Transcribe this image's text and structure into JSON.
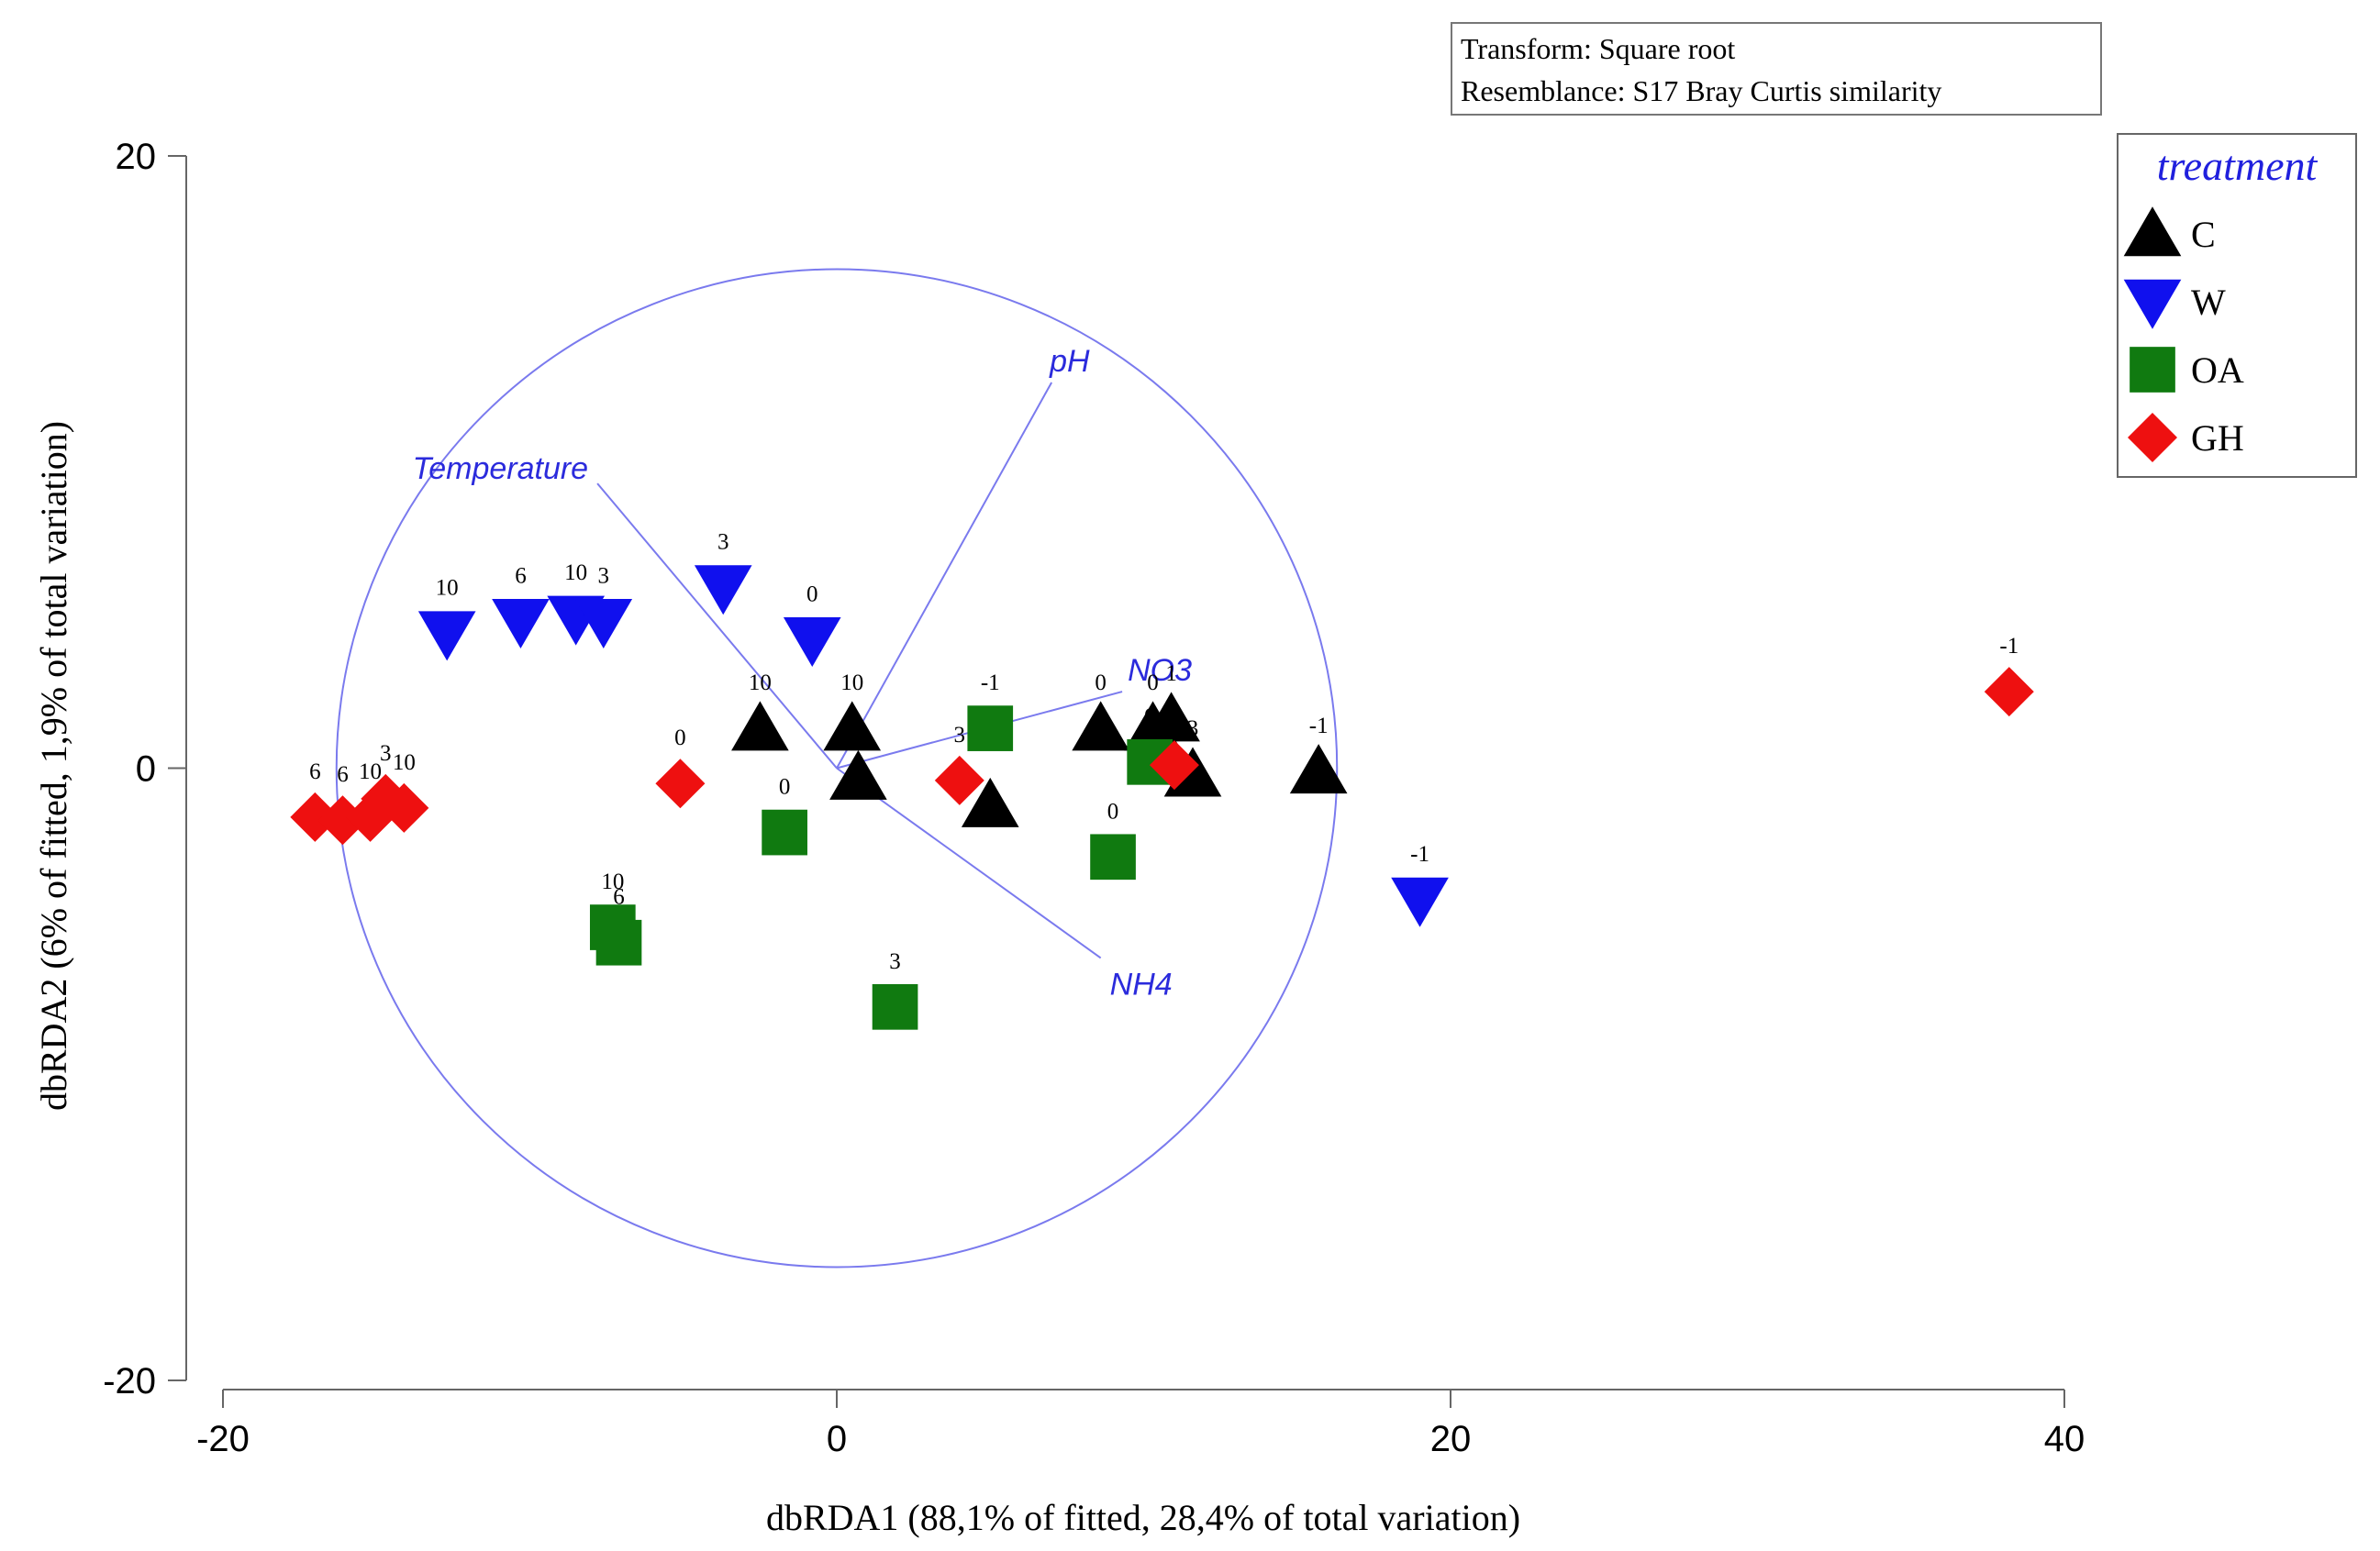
{
  "chart_data": {
    "type": "scatter",
    "title": "",
    "xlabel": "dbRDA1 (88,1% of fitted, 28,4% of total variation)",
    "ylabel": "dbRDA2 (6% of fitted, 1,9% of total variation)",
    "xlim": [
      -20,
      40
    ],
    "ylim": [
      -20,
      20
    ],
    "x_ticks": [
      -20,
      0,
      20,
      40
    ],
    "y_ticks": [
      -20,
      0,
      20
    ],
    "x_tick_labels": [
      "-20",
      "0",
      "20",
      "40"
    ],
    "y_tick_labels": [
      "-20",
      "0",
      "20"
    ],
    "info_box": [
      "Transform: Square root",
      "Resemblance: S17 Bray Curtis similarity"
    ],
    "legend_title": "treatment",
    "circle": {
      "center": [
        0,
        0
      ],
      "radius": 16.3
    },
    "vectors": [
      {
        "name": "pH",
        "end": [
          7.0,
          12.6
        ]
      },
      {
        "name": "Temperature",
        "end": [
          -7.8,
          9.3
        ]
      },
      {
        "name": "NO3",
        "end": [
          9.3,
          2.5
        ]
      },
      {
        "name": "NH4",
        "end": [
          8.6,
          -6.2
        ]
      }
    ],
    "series": [
      {
        "name": "C",
        "marker": "triangle-up",
        "color": "#000000",
        "points": [
          {
            "x": -2.5,
            "y": 1.3,
            "label": "10"
          },
          {
            "x": 0.5,
            "y": 1.3,
            "label": "10"
          },
          {
            "x": 0.7,
            "y": -0.3,
            "label": ""
          },
          {
            "x": 5.0,
            "y": -1.2,
            "label": ""
          },
          {
            "x": 8.6,
            "y": 1.3,
            "label": "0"
          },
          {
            "x": 10.3,
            "y": 1.3,
            "label": "0"
          },
          {
            "x": 10.9,
            "y": 1.6,
            "label": "1"
          },
          {
            "x": 11.6,
            "y": -0.2,
            "label": "3"
          },
          {
            "x": 15.7,
            "y": -0.1,
            "label": "-1"
          }
        ]
      },
      {
        "name": "W",
        "marker": "triangle-down",
        "color": "#1010ee",
        "points": [
          {
            "x": -12.7,
            "y": 4.4,
            "label": "10"
          },
          {
            "x": -10.3,
            "y": 4.8,
            "label": "6"
          },
          {
            "x": -8.5,
            "y": 4.9,
            "label": "10"
          },
          {
            "x": -7.6,
            "y": 4.8,
            "label": "3"
          },
          {
            "x": -3.7,
            "y": 5.9,
            "label": "3"
          },
          {
            "x": -0.8,
            "y": 4.2,
            "label": "0"
          },
          {
            "x": 19.0,
            "y": -4.3,
            "label": "-1"
          }
        ]
      },
      {
        "name": "OA",
        "marker": "square",
        "color": "#107a10",
        "points": [
          {
            "x": 5.0,
            "y": 1.3,
            "label": "-1"
          },
          {
            "x": 10.2,
            "y": 0.2,
            "label": "0"
          },
          {
            "x": -1.7,
            "y": -2.1,
            "label": "0"
          },
          {
            "x": 9.0,
            "y": -2.9,
            "label": "0"
          },
          {
            "x": -7.3,
            "y": -5.2,
            "label": "10"
          },
          {
            "x": -7.1,
            "y": -5.7,
            "label": "6"
          },
          {
            "x": 1.9,
            "y": -7.8,
            "label": "3"
          }
        ]
      },
      {
        "name": "GH",
        "marker": "diamond",
        "color": "#ee1010",
        "points": [
          {
            "x": -17.0,
            "y": -1.6,
            "label": "6"
          },
          {
            "x": -16.1,
            "y": -1.7,
            "label": "6"
          },
          {
            "x": -15.2,
            "y": -1.6,
            "label": "10"
          },
          {
            "x": -14.7,
            "y": -1.0,
            "label": "3"
          },
          {
            "x": -14.1,
            "y": -1.3,
            "label": "10"
          },
          {
            "x": -5.1,
            "y": -0.5,
            "label": "0"
          },
          {
            "x": 4.0,
            "y": -0.4,
            "label": "3"
          },
          {
            "x": 11.0,
            "y": 0.1,
            "label": ""
          },
          {
            "x": 38.2,
            "y": 2.5,
            "label": "-1"
          }
        ]
      }
    ]
  }
}
